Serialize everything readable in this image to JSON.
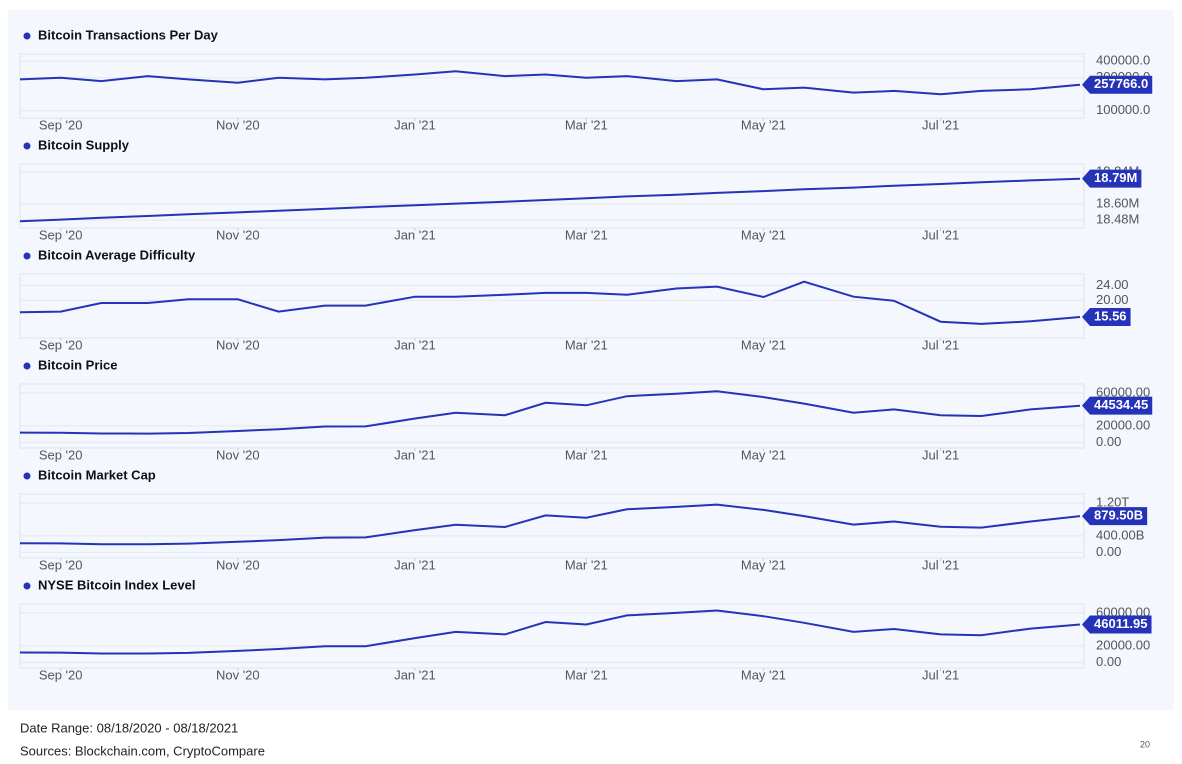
{
  "chart_data": [
    {
      "type": "line",
      "title": "Bitcoin Transactions Per Day",
      "color": "#2433b8",
      "x": [
        "2020-08-18",
        "2020-09-01",
        "2020-09-15",
        "2020-10-01",
        "2020-10-15",
        "2020-11-01",
        "2020-11-15",
        "2020-12-01",
        "2020-12-15",
        "2021-01-01",
        "2021-01-15",
        "2021-02-01",
        "2021-02-15",
        "2021-03-01",
        "2021-03-15",
        "2021-04-01",
        "2021-04-15",
        "2021-05-01",
        "2021-05-15",
        "2021-06-01",
        "2021-06-15",
        "2021-07-01",
        "2021-07-15",
        "2021-08-01",
        "2021-08-18"
      ],
      "values": [
        290000,
        300000,
        280000,
        310000,
        290000,
        270000,
        300000,
        290000,
        300000,
        320000,
        340000,
        310000,
        320000,
        300000,
        310000,
        280000,
        290000,
        230000,
        240000,
        210000,
        220000,
        200000,
        220000,
        230000,
        257766
      ],
      "value_labels": [
        null,
        null,
        null,
        null,
        null,
        null,
        null,
        null,
        null,
        null,
        null,
        null,
        null,
        null,
        null,
        null,
        null,
        null,
        null,
        null,
        null,
        null,
        null,
        null,
        "257766.0"
      ],
      "ylim": [
        80000,
        420000
      ],
      "yticks": [
        {
          "value": 100000,
          "label": "100000.0"
        },
        {
          "value": 300000,
          "label": "300000.0"
        },
        {
          "value": 400000,
          "label": "400000.0"
        }
      ],
      "xticks": [
        {
          "value": "2020-09-01",
          "label": "Sep '20"
        },
        {
          "value": "2020-11-01",
          "label": "Nov '20"
        },
        {
          "value": "2021-01-01",
          "label": "Jan '21"
        },
        {
          "value": "2021-03-01",
          "label": "Mar '21"
        },
        {
          "value": "2021-05-01",
          "label": "May '21"
        },
        {
          "value": "2021-07-01",
          "label": "Jul '21"
        }
      ]
    },
    {
      "type": "line",
      "title": "Bitcoin Supply",
      "color": "#2433b8",
      "x": [
        "2020-08-18",
        "2020-09-01",
        "2020-09-15",
        "2020-10-01",
        "2020-10-15",
        "2020-11-01",
        "2020-11-15",
        "2020-12-01",
        "2020-12-15",
        "2021-01-01",
        "2021-01-15",
        "2021-02-01",
        "2021-02-15",
        "2021-03-01",
        "2021-03-15",
        "2021-04-01",
        "2021-04-15",
        "2021-05-01",
        "2021-05-15",
        "2021-06-01",
        "2021-06-15",
        "2021-07-01",
        "2021-07-15",
        "2021-08-01",
        "2021-08-18"
      ],
      "values": [
        18470000,
        18483000,
        18497000,
        18510000,
        18523000,
        18537000,
        18550000,
        18563000,
        18577000,
        18590000,
        18603000,
        18617000,
        18630000,
        18643000,
        18657000,
        18670000,
        18683000,
        18697000,
        18710000,
        18723000,
        18737000,
        18750000,
        18763000,
        18777000,
        18790000
      ],
      "value_labels": [
        null,
        null,
        null,
        null,
        null,
        null,
        null,
        null,
        null,
        null,
        null,
        null,
        null,
        null,
        null,
        null,
        null,
        null,
        null,
        null,
        null,
        null,
        null,
        null,
        "18.79M"
      ],
      "ylim": [
        18450000,
        18870000
      ],
      "yticks": [
        {
          "value": 18480000,
          "label": "18.48M"
        },
        {
          "value": 18600000,
          "label": "18.60M"
        },
        {
          "value": 18840000,
          "label": "18.84M"
        }
      ],
      "xticks": [
        {
          "value": "2020-09-01",
          "label": "Sep '20"
        },
        {
          "value": "2020-11-01",
          "label": "Nov '20"
        },
        {
          "value": "2021-01-01",
          "label": "Jan '21"
        },
        {
          "value": "2021-03-01",
          "label": "Mar '21"
        },
        {
          "value": "2021-05-01",
          "label": "May '21"
        },
        {
          "value": "2021-07-01",
          "label": "Jul '21"
        }
      ]
    },
    {
      "type": "line",
      "title": "Bitcoin Average Difficulty",
      "color": "#2433b8",
      "x": [
        "2020-08-18",
        "2020-09-01",
        "2020-09-15",
        "2020-10-01",
        "2020-10-15",
        "2020-11-01",
        "2020-11-15",
        "2020-12-01",
        "2020-12-15",
        "2021-01-01",
        "2021-01-15",
        "2021-02-01",
        "2021-02-15",
        "2021-03-01",
        "2021-03-15",
        "2021-04-01",
        "2021-04-15",
        "2021-05-01",
        "2021-05-15",
        "2021-06-01",
        "2021-06-15",
        "2021-07-01",
        "2021-07-15",
        "2021-08-01",
        "2021-08-18"
      ],
      "values": [
        16.8,
        17,
        19.3,
        19.3,
        20.3,
        20.3,
        17,
        18.6,
        18.6,
        21,
        21,
        21.5,
        22,
        22,
        21.5,
        23.2,
        23.7,
        20.9,
        25,
        21,
        19.9,
        14.3,
        13.7,
        14.4,
        15.56
      ],
      "value_labels": [
        null,
        null,
        null,
        null,
        null,
        null,
        null,
        null,
        null,
        null,
        null,
        null,
        null,
        null,
        null,
        null,
        null,
        null,
        null,
        null,
        null,
        null,
        null,
        null,
        "15.56"
      ],
      "ylim": [
        11,
        26
      ],
      "yticks": [
        {
          "value": 20,
          "label": "20.00"
        },
        {
          "value": 24,
          "label": "24.00"
        }
      ],
      "xticks": [
        {
          "value": "2020-09-01",
          "label": "Sep '20"
        },
        {
          "value": "2020-11-01",
          "label": "Nov '20"
        },
        {
          "value": "2021-01-01",
          "label": "Jan '21"
        },
        {
          "value": "2021-03-01",
          "label": "Mar '21"
        },
        {
          "value": "2021-05-01",
          "label": "May '21"
        },
        {
          "value": "2021-07-01",
          "label": "Jul '21"
        }
      ]
    },
    {
      "type": "line",
      "title": "Bitcoin Price",
      "color": "#2433b8",
      "x": [
        "2020-08-18",
        "2020-09-01",
        "2020-09-15",
        "2020-10-01",
        "2020-10-15",
        "2020-11-01",
        "2020-11-15",
        "2020-12-01",
        "2020-12-15",
        "2021-01-01",
        "2021-01-15",
        "2021-02-01",
        "2021-02-15",
        "2021-03-01",
        "2021-03-15",
        "2021-04-01",
        "2021-04-15",
        "2021-05-01",
        "2021-05-15",
        "2021-06-01",
        "2021-06-15",
        "2021-07-01",
        "2021-07-15",
        "2021-08-01",
        "2021-08-18"
      ],
      "values": [
        11800,
        11700,
        10700,
        10600,
        11400,
        13800,
        16000,
        19200,
        19400,
        29000,
        36000,
        33000,
        48000,
        45000,
        56000,
        59000,
        62000,
        55000,
        47000,
        36000,
        40000,
        33000,
        32000,
        40000,
        44534.45
      ],
      "value_labels": [
        null,
        null,
        null,
        null,
        null,
        null,
        null,
        null,
        null,
        null,
        null,
        null,
        null,
        null,
        null,
        null,
        null,
        null,
        null,
        null,
        null,
        null,
        null,
        null,
        "44534.45"
      ],
      "ylim": [
        -2000,
        66000
      ],
      "yticks": [
        {
          "value": 0,
          "label": "0.00"
        },
        {
          "value": 20000,
          "label": "20000.00"
        },
        {
          "value": 60000,
          "label": "60000.00"
        }
      ],
      "xticks": [
        {
          "value": "2020-09-01",
          "label": "Sep '20"
        },
        {
          "value": "2020-11-01",
          "label": "Nov '20"
        },
        {
          "value": "2021-01-01",
          "label": "Jan '21"
        },
        {
          "value": "2021-03-01",
          "label": "Mar '21"
        },
        {
          "value": "2021-05-01",
          "label": "May '21"
        },
        {
          "value": "2021-07-01",
          "label": "Jul '21"
        }
      ]
    },
    {
      "type": "line",
      "title": "Bitcoin Market Cap",
      "color": "#2433b8",
      "x": [
        "2020-08-18",
        "2020-09-01",
        "2020-09-15",
        "2020-10-01",
        "2020-10-15",
        "2020-11-01",
        "2020-11-15",
        "2020-12-01",
        "2020-12-15",
        "2021-01-01",
        "2021-01-15",
        "2021-02-01",
        "2021-02-15",
        "2021-03-01",
        "2021-03-15",
        "2021-04-01",
        "2021-04-15",
        "2021-05-01",
        "2021-05-15",
        "2021-06-01",
        "2021-06-15",
        "2021-07-01",
        "2021-07-15",
        "2021-08-01",
        "2021-08-18"
      ],
      "values": [
        219000000000,
        217000000000,
        199000000000,
        197000000000,
        212000000000,
        257000000000,
        298000000000,
        358000000000,
        362000000000,
        541000000000,
        672000000000,
        616000000000,
        897000000000,
        841000000000,
        1046000000000,
        1103000000000,
        1160000000000,
        1030000000000,
        880000000000,
        675000000000,
        750000000000,
        620000000000,
        602000000000,
        750000000000,
        879500000000
      ],
      "value_labels": [
        null,
        null,
        null,
        null,
        null,
        null,
        null,
        null,
        null,
        null,
        null,
        null,
        null,
        null,
        null,
        null,
        null,
        null,
        null,
        null,
        null,
        null,
        null,
        null,
        "879.50B"
      ],
      "ylim": [
        -40000000000,
        1320000000000
      ],
      "yticks": [
        {
          "value": 0,
          "label": "0.00"
        },
        {
          "value": 400000000000,
          "label": "400.00B"
        },
        {
          "value": 1200000000000,
          "label": "1.20T"
        }
      ],
      "xticks": [
        {
          "value": "2020-09-01",
          "label": "Sep '20"
        },
        {
          "value": "2020-11-01",
          "label": "Nov '20"
        },
        {
          "value": "2021-01-01",
          "label": "Jan '21"
        },
        {
          "value": "2021-03-01",
          "label": "Mar '21"
        },
        {
          "value": "2021-05-01",
          "label": "May '21"
        },
        {
          "value": "2021-07-01",
          "label": "Jul '21"
        }
      ]
    },
    {
      "type": "line",
      "title": "NYSE Bitcoin Index Level",
      "color": "#2433b8",
      "x": [
        "2020-08-18",
        "2020-09-01",
        "2020-09-15",
        "2020-10-01",
        "2020-10-15",
        "2020-11-01",
        "2020-11-15",
        "2020-12-01",
        "2020-12-15",
        "2021-01-01",
        "2021-01-15",
        "2021-02-01",
        "2021-02-15",
        "2021-03-01",
        "2021-03-15",
        "2021-04-01",
        "2021-04-15",
        "2021-05-01",
        "2021-05-15",
        "2021-06-01",
        "2021-06-15",
        "2021-07-01",
        "2021-07-15",
        "2021-08-01",
        "2021-08-18"
      ],
      "values": [
        12000,
        11800,
        10800,
        10700,
        11500,
        13900,
        16200,
        19500,
        19600,
        29500,
        37000,
        34000,
        49000,
        46000,
        57000,
        60000,
        63000,
        56000,
        48000,
        37000,
        40500,
        34000,
        33000,
        41000,
        46011.95
      ],
      "value_labels": [
        null,
        null,
        null,
        null,
        null,
        null,
        null,
        null,
        null,
        null,
        null,
        null,
        null,
        null,
        null,
        null,
        null,
        null,
        null,
        null,
        null,
        null,
        null,
        null,
        "46011.95"
      ],
      "ylim": [
        -2000,
        66000
      ],
      "yticks": [
        {
          "value": 0,
          "label": "0.00"
        },
        {
          "value": 20000,
          "label": "20000.00"
        },
        {
          "value": 60000,
          "label": "60000.00"
        }
      ],
      "xticks": [
        {
          "value": "2020-09-01",
          "label": "Sep '20"
        },
        {
          "value": "2020-11-01",
          "label": "Nov '20"
        },
        {
          "value": "2021-01-01",
          "label": "Jan '21"
        },
        {
          "value": "2021-03-01",
          "label": "Mar '21"
        },
        {
          "value": "2021-05-01",
          "label": "May '21"
        },
        {
          "value": "2021-07-01",
          "label": "Jul '21"
        }
      ]
    }
  ],
  "footer": {
    "date_range": "Date Range: 08/18/2020 - 08/18/2021",
    "sources": "Sources: Blockchain.com, CryptoCompare",
    "page_number": "20"
  }
}
